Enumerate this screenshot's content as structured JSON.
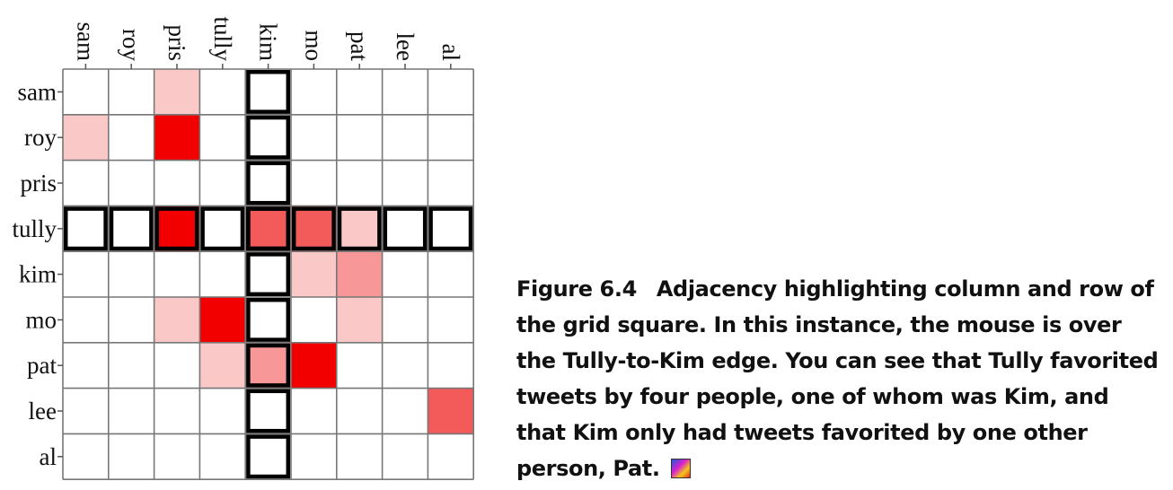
{
  "chart_data": {
    "type": "heatmap",
    "columns": [
      "sam",
      "roy",
      "pris",
      "tully",
      "kim",
      "mo",
      "pat",
      "lee",
      "al"
    ],
    "rows": [
      "sam",
      "roy",
      "pris",
      "tully",
      "kim",
      "mo",
      "pat",
      "lee",
      "al"
    ],
    "cells": [
      {
        "row": "sam",
        "col": "pris",
        "value": 1
      },
      {
        "row": "roy",
        "col": "sam",
        "value": 1
      },
      {
        "row": "roy",
        "col": "pris",
        "value": 4
      },
      {
        "row": "tully",
        "col": "pris",
        "value": 4
      },
      {
        "row": "tully",
        "col": "kim",
        "value": 3
      },
      {
        "row": "tully",
        "col": "mo",
        "value": 3
      },
      {
        "row": "tully",
        "col": "pat",
        "value": 1
      },
      {
        "row": "kim",
        "col": "mo",
        "value": 1
      },
      {
        "row": "kim",
        "col": "pat",
        "value": 2
      },
      {
        "row": "mo",
        "col": "pris",
        "value": 1
      },
      {
        "row": "mo",
        "col": "tully",
        "value": 4
      },
      {
        "row": "mo",
        "col": "pat",
        "value": 1
      },
      {
        "row": "pat",
        "col": "tully",
        "value": 1
      },
      {
        "row": "pat",
        "col": "kim",
        "value": 2
      },
      {
        "row": "pat",
        "col": "mo",
        "value": 4
      },
      {
        "row": "lee",
        "col": "al",
        "value": 3
      }
    ],
    "value_scale": {
      "min": 0,
      "max": 4
    },
    "color_scale": [
      "#ffffff",
      "#fbc8c8",
      "#f79797",
      "#f35a5a",
      "#f20000"
    ],
    "highlight": {
      "row": "tully",
      "col": "kim"
    },
    "highlight_color": "#000000",
    "grid_color": "#777777"
  },
  "caption": {
    "label": "Figure 6.4",
    "text": "Adjacency highlighting column and row of the grid square. In this instance, the mouse is over the Tully-to-Kim edge. You can see that Tully favorited tweets by four people, one of whom was Kim, and that Kim only had tweets favorited by one other person, Pat."
  }
}
